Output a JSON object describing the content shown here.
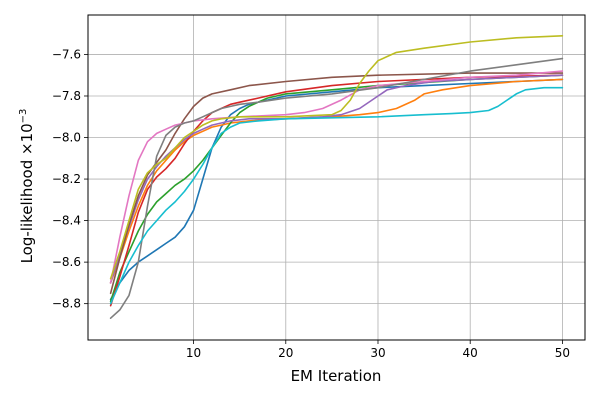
{
  "chart_data": {
    "type": "line",
    "title": "",
    "xlabel": "EM Iteration",
    "ylabel": "Log-likelihood ×10",
    "ylabel_exponent": "−3",
    "xlim": [
      -1.45,
      52.45
    ],
    "ylim": [
      -8.975,
      -7.41
    ],
    "x_ticks": [
      10,
      20,
      30,
      40,
      50
    ],
    "x_tick_labels": [
      "10",
      "20",
      "30",
      "40",
      "50"
    ],
    "y_ticks": [
      -8.8,
      -8.6,
      -8.4,
      -8.2,
      -8.0,
      -7.8,
      -7.6
    ],
    "y_tick_labels": [
      "−8.8",
      "−8.6",
      "−8.4",
      "−8.2",
      "−8.0",
      "−7.8",
      "−7.6"
    ],
    "grid": true,
    "legend": "none",
    "series": [
      {
        "color": "#1f77b4",
        "points": [
          [
            1,
            -8.78
          ],
          [
            2,
            -8.7
          ],
          [
            3,
            -8.64
          ],
          [
            4,
            -8.6
          ],
          [
            5,
            -8.57
          ],
          [
            6,
            -8.54
          ],
          [
            7,
            -8.51
          ],
          [
            8,
            -8.48
          ],
          [
            9,
            -8.43
          ],
          [
            10,
            -8.35
          ],
          [
            11,
            -8.2
          ],
          [
            12,
            -8.05
          ],
          [
            13,
            -7.95
          ],
          [
            14,
            -7.89
          ],
          [
            15,
            -7.86
          ],
          [
            16,
            -7.84
          ],
          [
            18,
            -7.82
          ],
          [
            20,
            -7.8
          ],
          [
            25,
            -7.78
          ],
          [
            30,
            -7.76
          ],
          [
            35,
            -7.75
          ],
          [
            40,
            -7.74
          ],
          [
            45,
            -7.73
          ],
          [
            50,
            -7.72
          ]
        ]
      },
      {
        "color": "#ff7f0e",
        "points": [
          [
            1,
            -8.7
          ],
          [
            2,
            -8.58
          ],
          [
            3,
            -8.45
          ],
          [
            4,
            -8.33
          ],
          [
            5,
            -8.23
          ],
          [
            6,
            -8.16
          ],
          [
            7,
            -8.11
          ],
          [
            8,
            -8.06
          ],
          [
            9,
            -8.02
          ],
          [
            10,
            -7.99
          ],
          [
            11,
            -7.97
          ],
          [
            12,
            -7.95
          ],
          [
            13,
            -7.94
          ],
          [
            14,
            -7.93
          ],
          [
            16,
            -7.92
          ],
          [
            20,
            -7.91
          ],
          [
            25,
            -7.9
          ],
          [
            28,
            -7.89
          ],
          [
            30,
            -7.88
          ],
          [
            32,
            -7.86
          ],
          [
            34,
            -7.82
          ],
          [
            35,
            -7.79
          ],
          [
            37,
            -7.77
          ],
          [
            40,
            -7.75
          ],
          [
            45,
            -7.73
          ],
          [
            50,
            -7.72
          ]
        ]
      },
      {
        "color": "#2ca02c",
        "points": [
          [
            1,
            -8.79
          ],
          [
            2,
            -8.65
          ],
          [
            3,
            -8.55
          ],
          [
            4,
            -8.45
          ],
          [
            5,
            -8.37
          ],
          [
            6,
            -8.31
          ],
          [
            7,
            -8.27
          ],
          [
            8,
            -8.23
          ],
          [
            9,
            -8.2
          ],
          [
            10,
            -8.16
          ],
          [
            11,
            -8.11
          ],
          [
            12,
            -8.05
          ],
          [
            13,
            -7.99
          ],
          [
            14,
            -7.93
          ],
          [
            15,
            -7.88
          ],
          [
            16,
            -7.85
          ],
          [
            17,
            -7.83
          ],
          [
            18,
            -7.81
          ],
          [
            20,
            -7.79
          ],
          [
            25,
            -7.77
          ],
          [
            30,
            -7.75
          ],
          [
            40,
            -7.72
          ],
          [
            50,
            -7.7
          ]
        ]
      },
      {
        "color": "#d62728",
        "points": [
          [
            1,
            -8.81
          ],
          [
            2,
            -8.67
          ],
          [
            3,
            -8.52
          ],
          [
            4,
            -8.36
          ],
          [
            5,
            -8.25
          ],
          [
            6,
            -8.19
          ],
          [
            7,
            -8.15
          ],
          [
            8,
            -8.1
          ],
          [
            9,
            -8.03
          ],
          [
            10,
            -7.97
          ],
          [
            11,
            -7.92
          ],
          [
            12,
            -7.88
          ],
          [
            13,
            -7.86
          ],
          [
            14,
            -7.84
          ],
          [
            15,
            -7.83
          ],
          [
            17,
            -7.81
          ],
          [
            20,
            -7.78
          ],
          [
            25,
            -7.75
          ],
          [
            30,
            -7.73
          ],
          [
            40,
            -7.71
          ],
          [
            50,
            -7.7
          ]
        ]
      },
      {
        "color": "#9467bd",
        "points": [
          [
            1,
            -8.7
          ],
          [
            2,
            -8.56
          ],
          [
            3,
            -8.43
          ],
          [
            4,
            -8.3
          ],
          [
            5,
            -8.2
          ],
          [
            6,
            -8.14
          ],
          [
            7,
            -8.09
          ],
          [
            8,
            -8.05
          ],
          [
            9,
            -8.01
          ],
          [
            10,
            -7.98
          ],
          [
            11,
            -7.96
          ],
          [
            12,
            -7.94
          ],
          [
            13,
            -7.93
          ],
          [
            14,
            -7.92
          ],
          [
            16,
            -7.91
          ],
          [
            20,
            -7.91
          ],
          [
            24,
            -7.9
          ],
          [
            26,
            -7.89
          ],
          [
            28,
            -7.86
          ],
          [
            30,
            -7.8
          ],
          [
            31,
            -7.77
          ],
          [
            33,
            -7.75
          ],
          [
            36,
            -7.73
          ],
          [
            40,
            -7.72
          ],
          [
            45,
            -7.71
          ],
          [
            50,
            -7.7
          ]
        ]
      },
      {
        "color": "#8c564b",
        "points": [
          [
            1,
            -8.75
          ],
          [
            2,
            -8.58
          ],
          [
            3,
            -8.42
          ],
          [
            4,
            -8.28
          ],
          [
            5,
            -8.18
          ],
          [
            6,
            -8.12
          ],
          [
            7,
            -8.06
          ],
          [
            8,
            -7.98
          ],
          [
            9,
            -7.91
          ],
          [
            10,
            -7.85
          ],
          [
            11,
            -7.81
          ],
          [
            12,
            -7.79
          ],
          [
            14,
            -7.77
          ],
          [
            16,
            -7.75
          ],
          [
            20,
            -7.73
          ],
          [
            25,
            -7.71
          ],
          [
            30,
            -7.7
          ],
          [
            40,
            -7.69
          ],
          [
            50,
            -7.69
          ]
        ]
      },
      {
        "color": "#e377c2",
        "points": [
          [
            1,
            -8.7
          ],
          [
            2,
            -8.48
          ],
          [
            3,
            -8.28
          ],
          [
            4,
            -8.11
          ],
          [
            5,
            -8.02
          ],
          [
            6,
            -7.98
          ],
          [
            7,
            -7.96
          ],
          [
            8,
            -7.94
          ],
          [
            9,
            -7.93
          ],
          [
            10,
            -7.92
          ],
          [
            12,
            -7.91
          ],
          [
            15,
            -7.9
          ],
          [
            20,
            -7.89
          ],
          [
            22,
            -7.88
          ],
          [
            24,
            -7.86
          ],
          [
            26,
            -7.82
          ],
          [
            28,
            -7.77
          ],
          [
            30,
            -7.75
          ],
          [
            35,
            -7.73
          ],
          [
            40,
            -7.71
          ],
          [
            45,
            -7.7
          ],
          [
            50,
            -7.68
          ]
        ]
      },
      {
        "color": "#7f7f7f",
        "points": [
          [
            1,
            -8.87
          ],
          [
            2,
            -8.83
          ],
          [
            3,
            -8.76
          ],
          [
            4,
            -8.6
          ],
          [
            5,
            -8.33
          ],
          [
            6,
            -8.09
          ],
          [
            7,
            -7.99
          ],
          [
            8,
            -7.95
          ],
          [
            9,
            -7.93
          ],
          [
            10,
            -7.92
          ],
          [
            11,
            -7.9
          ],
          [
            12,
            -7.88
          ],
          [
            13,
            -7.86
          ],
          [
            14,
            -7.85
          ],
          [
            15,
            -7.84
          ],
          [
            17,
            -7.83
          ],
          [
            20,
            -7.81
          ],
          [
            25,
            -7.79
          ],
          [
            30,
            -7.76
          ],
          [
            35,
            -7.72
          ],
          [
            40,
            -7.68
          ],
          [
            45,
            -7.65
          ],
          [
            50,
            -7.62
          ]
        ]
      },
      {
        "color": "#bcbd22",
        "points": [
          [
            1,
            -8.68
          ],
          [
            2,
            -8.55
          ],
          [
            3,
            -8.4
          ],
          [
            4,
            -8.25
          ],
          [
            5,
            -8.17
          ],
          [
            6,
            -8.13
          ],
          [
            7,
            -8.1
          ],
          [
            8,
            -8.05
          ],
          [
            9,
            -8.0
          ],
          [
            10,
            -7.97
          ],
          [
            11,
            -7.94
          ],
          [
            12,
            -7.92
          ],
          [
            13,
            -7.91
          ],
          [
            15,
            -7.9
          ],
          [
            20,
            -7.9
          ],
          [
            25,
            -7.89
          ],
          [
            26,
            -7.87
          ],
          [
            27,
            -7.82
          ],
          [
            28,
            -7.74
          ],
          [
            29,
            -7.68
          ],
          [
            30,
            -7.63
          ],
          [
            31,
            -7.61
          ],
          [
            32,
            -7.59
          ],
          [
            35,
            -7.57
          ],
          [
            40,
            -7.54
          ],
          [
            45,
            -7.52
          ],
          [
            50,
            -7.51
          ]
        ]
      },
      {
        "color": "#17becf",
        "points": [
          [
            1,
            -8.8
          ],
          [
            2,
            -8.7
          ],
          [
            3,
            -8.6
          ],
          [
            4,
            -8.52
          ],
          [
            5,
            -8.45
          ],
          [
            6,
            -8.4
          ],
          [
            7,
            -8.35
          ],
          [
            8,
            -8.31
          ],
          [
            9,
            -8.26
          ],
          [
            10,
            -8.2
          ],
          [
            11,
            -8.13
          ],
          [
            12,
            -8.05
          ],
          [
            13,
            -7.98
          ],
          [
            14,
            -7.95
          ],
          [
            15,
            -7.93
          ],
          [
            17,
            -7.92
          ],
          [
            20,
            -7.91
          ],
          [
            30,
            -7.9
          ],
          [
            35,
            -7.89
          ],
          [
            38,
            -7.885
          ],
          [
            40,
            -7.88
          ],
          [
            42,
            -7.87
          ],
          [
            43,
            -7.85
          ],
          [
            44,
            -7.82
          ],
          [
            45,
            -7.79
          ],
          [
            46,
            -7.77
          ],
          [
            48,
            -7.76
          ],
          [
            50,
            -7.76
          ]
        ]
      }
    ]
  }
}
